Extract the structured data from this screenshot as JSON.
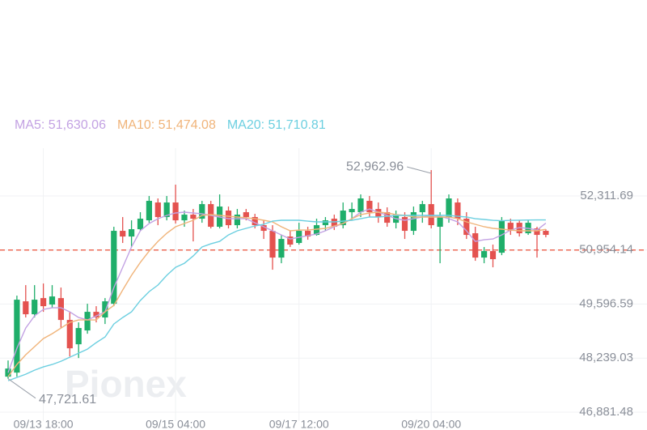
{
  "chart_data": {
    "type": "candlestick",
    "watermark": "Pionex",
    "up_color": "#1fae6a",
    "down_color": "#e4524f",
    "grid": true,
    "ylim": [
      46657,
      53513
    ],
    "yticks": [
      {
        "value": 52311.69,
        "label": "52,311.69"
      },
      {
        "value": 50954.14,
        "label": "50,954.14"
      },
      {
        "value": 49596.59,
        "label": "49,596.59"
      },
      {
        "value": 48239.03,
        "label": "48,239.03"
      },
      {
        "value": 46881.48,
        "label": "46,881.48"
      }
    ],
    "last_price": 50954.14,
    "last_price_color": "#ec6a57",
    "high_label": "52,962.96",
    "low_label": "47,721.61",
    "categories": [
      null,
      null,
      null,
      null,
      "09/13 18:00",
      null,
      null,
      null,
      null,
      null,
      null,
      null,
      null,
      null,
      null,
      null,
      null,
      null,
      null,
      "09/15 04:00",
      null,
      null,
      null,
      null,
      null,
      null,
      null,
      null,
      null,
      null,
      null,
      null,
      null,
      "09/17 12:00",
      null,
      null,
      null,
      null,
      null,
      null,
      null,
      null,
      null,
      null,
      null,
      null,
      null,
      null,
      "09/20 04:00",
      null,
      null,
      null,
      null,
      null,
      null,
      null,
      null,
      null,
      null,
      null,
      null,
      null
    ],
    "open": [
      47773,
      47875,
      49666,
      49341,
      49747,
      49585,
      49747,
      49198,
      48587,
      48934,
      49402,
      49260,
      49605,
      51437,
      51294,
      51478,
      51701,
      52149,
      51783,
      52149,
      51701,
      51844,
      51742,
      52108,
      51539,
      51946,
      51579,
      51905,
      51783,
      51579,
      51437,
      50765,
      51294,
      51132,
      51437,
      51335,
      51579,
      51742,
      51579,
      51905,
      51905,
      52190,
      51986,
      51905,
      51640,
      51783,
      51437,
      51905,
      52108,
      51539,
      51783,
      52149,
      51742,
      51376,
      50765,
      50928,
      50887,
      51640,
      51640,
      51376,
      51498,
      51437
    ],
    "high": [
      48180,
      49809,
      50073,
      50073,
      50114,
      50073,
      50012,
      49402,
      49137,
      49605,
      49544,
      49747,
      51539,
      51783,
      51701,
      51905,
      52312,
      52251,
      52312,
      52597,
      51946,
      51986,
      52190,
      52190,
      52352,
      52047,
      51986,
      51986,
      51864,
      51701,
      51579,
      51335,
      51437,
      51640,
      51539,
      51742,
      51783,
      51844,
      52149,
      52149,
      52352,
      52312,
      52149,
      52027,
      51946,
      51905,
      52047,
      52190,
      52962.96,
      51905,
      52352,
      52251,
      51905,
      51539,
      51030,
      51091,
      51783,
      51742,
      51701,
      51701,
      51539,
      51477
    ],
    "low": [
      47721.61,
      47773,
      49260,
      49260,
      49402,
      49503,
      48995,
      48282,
      48241,
      48852,
      49137,
      49096,
      49544,
      51132,
      51030,
      51437,
      51640,
      51579,
      51701,
      51620,
      51539,
      51172,
      51640,
      51498,
      51498,
      51498,
      51498,
      51701,
      51498,
      51233,
      50460,
      50623,
      51030,
      51091,
      51213,
      51315,
      51437,
      51457,
      51498,
      51701,
      51783,
      51783,
      51640,
      51539,
      51498,
      51233,
      51335,
      51640,
      51498,
      50623,
      51640,
      51579,
      51233,
      50684,
      50623,
      50521,
      50826,
      51335,
      51294,
      51335,
      50765,
      51274
    ],
    "close": [
      47977,
      49707,
      49341,
      49707,
      49544,
      49788,
      49198,
      48486,
      48995,
      49402,
      49260,
      49666,
      51437,
      51294,
      51478,
      51742,
      52190,
      51783,
      52149,
      51701,
      51844,
      51742,
      52108,
      51539,
      52047,
      51579,
      51844,
      51783,
      51579,
      51437,
      50765,
      51233,
      51091,
      51437,
      51294,
      51579,
      51701,
      51539,
      51946,
      51986,
      52251,
      51905,
      51783,
      51640,
      51844,
      51437,
      51905,
      52108,
      51579,
      51783,
      52251,
      51742,
      51335,
      50765,
      50928,
      50725,
      51701,
      51437,
      51376,
      51640,
      51335,
      51335
    ],
    "series": [
      {
        "name": "MA5: 51,630.06",
        "color": "#c3a2e3",
        "values": [
          47875,
          48486,
          48995,
          49300,
          49463,
          49504,
          49504,
          49402,
          49260,
          49199,
          49300,
          49402,
          50012,
          50521,
          51030,
          51437,
          51620,
          51742,
          51824,
          51885,
          51905,
          51885,
          51864,
          51824,
          51783,
          51742,
          51742,
          51742,
          51640,
          51539,
          51437,
          51335,
          51233,
          51274,
          51315,
          51356,
          51437,
          51539,
          51620,
          51742,
          51905,
          51986,
          51905,
          51824,
          51742,
          51702,
          51742,
          51783,
          51824,
          51803,
          51742,
          51661,
          51437,
          51172,
          51213,
          51233,
          51335,
          51457,
          51518,
          51498,
          51457,
          51630.06
        ]
      },
      {
        "name": "MA10: 51,474.08",
        "color": "#f0b47a",
        "values": [
          47774,
          48079,
          48323,
          48527,
          48730,
          48853,
          48995,
          49137,
          49199,
          49199,
          49199,
          49402,
          49565,
          49951,
          50318,
          50643,
          50928,
          51172,
          51376,
          51539,
          51620,
          51702,
          51824,
          51844,
          51824,
          51803,
          51783,
          51763,
          51742,
          51702,
          51661,
          51539,
          51437,
          51457,
          51457,
          51478,
          51498,
          51559,
          51620,
          51742,
          51844,
          51885,
          51905,
          51885,
          51844,
          51824,
          51783,
          51783,
          51783,
          51783,
          51783,
          51742,
          51661,
          51600,
          51539,
          51498,
          51478,
          51457,
          51437,
          51437,
          51437,
          51474.08
        ]
      },
      {
        "name": "MA20: 51,710.81",
        "color": "#6ccfe0",
        "values": [
          47672,
          47754,
          47835,
          47937,
          48018,
          48079,
          48160,
          48262,
          48364,
          48466,
          48629,
          48771,
          49097,
          49260,
          49402,
          49687,
          49911,
          50074,
          50318,
          50521,
          50623,
          50806,
          51030,
          51111,
          51172,
          51335,
          51437,
          51498,
          51559,
          51600,
          51681,
          51702,
          51702,
          51702,
          51681,
          51661,
          51661,
          51661,
          51681,
          51702,
          51742,
          51783,
          51783,
          51803,
          51824,
          51824,
          51824,
          51824,
          51824,
          51824,
          51824,
          51803,
          51783,
          51742,
          51722,
          51700,
          51690,
          51700,
          51705,
          51708,
          51710,
          51710.81
        ]
      }
    ]
  }
}
